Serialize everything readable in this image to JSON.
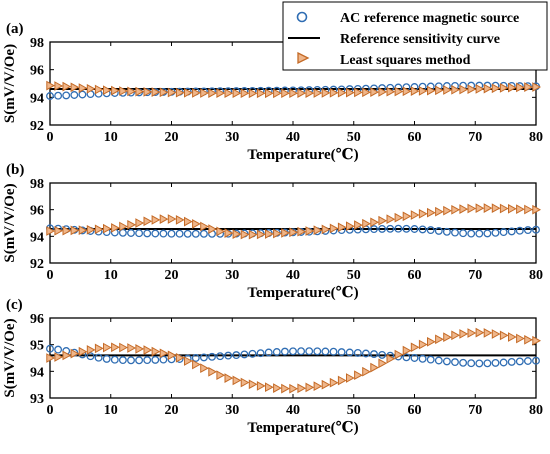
{
  "colors": {
    "ac": "#2f6db3",
    "ref": "#000000",
    "lsm": "#c46a26",
    "lsm_fill": "#efb68a"
  },
  "legend": {
    "ac_label": "AC reference magnetic source",
    "ref_label": "Reference sensitivity curve",
    "lsm_label": "Least squares method",
    "placement": "top-right"
  },
  "chart_data": [
    {
      "type": "line",
      "panel_label": "(a)",
      "xlabel": "Temperature(℃)",
      "ylabel": "S(mV/V/Oe)",
      "xlim": [
        0,
        80
      ],
      "ylim": [
        92,
        98
      ],
      "xticks": [
        "0",
        "10",
        "20",
        "30",
        "40",
        "50",
        "60",
        "70",
        "80"
      ],
      "yticks": [
        "92",
        "94",
        "96",
        "98"
      ],
      "reference": 94.6,
      "series": [
        {
          "name": "AC reference magnetic source",
          "marker": "circle",
          "x": [
            0,
            10,
            20,
            30,
            40,
            50,
            60,
            70,
            80
          ],
          "y": [
            94.1,
            94.3,
            94.4,
            94.45,
            94.5,
            94.6,
            94.75,
            94.85,
            94.8
          ]
        },
        {
          "name": "Least squares method",
          "marker": "triangle-right",
          "x": [
            0,
            10,
            20,
            30,
            40,
            50,
            60,
            70,
            80
          ],
          "y": [
            94.85,
            94.5,
            94.35,
            94.3,
            94.3,
            94.35,
            94.45,
            94.6,
            94.75
          ]
        }
      ]
    },
    {
      "type": "line",
      "panel_label": "(b)",
      "xlabel": "Temperature(℃)",
      "ylabel": "S(mV/V/Oe)",
      "xlim": [
        0,
        80
      ],
      "ylim": [
        92,
        98
      ],
      "xticks": [
        "0",
        "10",
        "20",
        "30",
        "40",
        "50",
        "60",
        "70",
        "80"
      ],
      "yticks": [
        "92",
        "94",
        "96",
        "98"
      ],
      "reference": 94.55,
      "series": [
        {
          "name": "AC reference magnetic source",
          "marker": "circle",
          "x": [
            0,
            10,
            20,
            30,
            40,
            50,
            60,
            70,
            80
          ],
          "y": [
            94.6,
            94.3,
            94.2,
            94.2,
            94.3,
            94.5,
            94.55,
            94.2,
            94.5
          ]
        },
        {
          "name": "Least squares method",
          "marker": "triangle-right",
          "x": [
            0,
            10,
            20,
            30,
            40,
            50,
            60,
            70,
            80
          ],
          "y": [
            94.4,
            94.6,
            95.3,
            94.2,
            94.3,
            94.8,
            95.6,
            96.1,
            96.0
          ]
        }
      ]
    },
    {
      "type": "line",
      "panel_label": "(c)",
      "xlabel": "Temperature(℃)",
      "ylabel": "S(mV/V/Oe)",
      "xlim": [
        0,
        80
      ],
      "ylim": [
        93,
        96
      ],
      "xticks": [
        "0",
        "10",
        "20",
        "30",
        "40",
        "50",
        "60",
        "70",
        "80"
      ],
      "yticks": [
        "93",
        "94",
        "95",
        "96"
      ],
      "reference": 94.6,
      "series": [
        {
          "name": "AC reference magnetic source",
          "marker": "circle",
          "x": [
            0,
            10,
            20,
            30,
            40,
            50,
            60,
            70,
            80
          ],
          "y": [
            94.85,
            94.45,
            94.45,
            94.6,
            94.75,
            94.7,
            94.5,
            94.3,
            94.4
          ]
        },
        {
          "name": "Least squares method",
          "marker": "triangle-right",
          "x": [
            0,
            10,
            20,
            30,
            40,
            50,
            60,
            70,
            80
          ],
          "y": [
            94.5,
            94.9,
            94.6,
            93.7,
            93.35,
            93.8,
            94.9,
            95.45,
            95.15
          ]
        }
      ]
    }
  ]
}
